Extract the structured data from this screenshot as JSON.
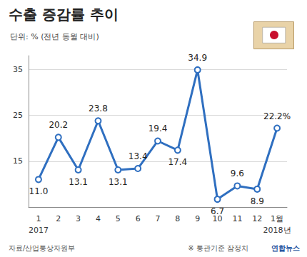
{
  "chart_data": {
    "type": "line",
    "title": "수출 증감률 추이",
    "subtitle": "단위: % (전년 동월 대비)",
    "categories": [
      "1",
      "2",
      "3",
      "4",
      "5",
      "6",
      "7",
      "8",
      "9",
      "10",
      "11",
      "12",
      "1월"
    ],
    "values": [
      11.0,
      20.2,
      13.1,
      23.8,
      13.1,
      13.4,
      19.4,
      17.4,
      34.9,
      6.7,
      9.6,
      8.9,
      22.2
    ],
    "value_labels": [
      "11.0",
      "20.2",
      "13.1",
      "23.8",
      "13.1",
      "13.4",
      "19.4",
      "17.4",
      "34.9",
      "6.7",
      "9.6",
      "8.9",
      "22.2%"
    ],
    "color": "#2f6fc0",
    "marker": "circle",
    "data_labels": true,
    "ylim": [
      5,
      38
    ],
    "yticks": [
      15,
      25,
      35
    ],
    "grid": true,
    "annotations": {
      "x_year_start": "2017",
      "x_year_end": "2018년",
      "source": "자료/산업통상자원부",
      "note": "※ 통관기준 잠정치",
      "credit": "연합뉴스"
    }
  }
}
